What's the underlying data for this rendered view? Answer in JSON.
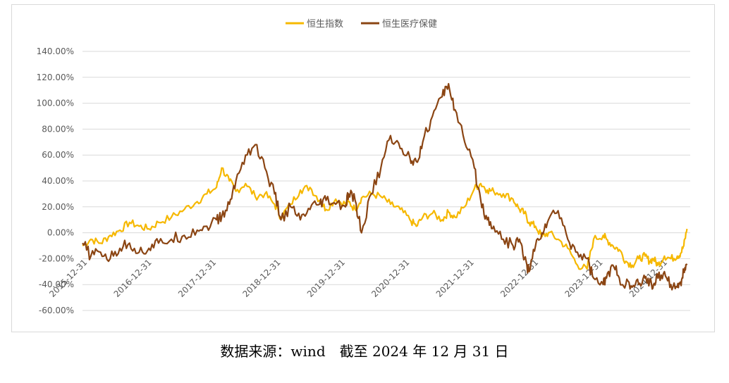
{
  "caption": "数据来源：wind　截至 2024 年 12 月 31 日",
  "chart_data": {
    "type": "line",
    "title": "",
    "xlabel": "",
    "ylabel": "",
    "legend_position": "top-center",
    "grid": "horizontal",
    "ylim": [
      -60,
      140
    ],
    "yticks": [
      -60,
      -40,
      -20,
      0,
      20,
      40,
      60,
      80,
      100,
      120,
      140
    ],
    "ytick_labels": [
      "-60.00%",
      "-40.00%",
      "-20.00%",
      "0.00%",
      "20.00%",
      "40.00%",
      "60.00%",
      "80.00%",
      "100.00%",
      "120.00%",
      "140.00%"
    ],
    "xlim": [
      2015.92,
      2025.35
    ],
    "xtick_positions": [
      2016.0,
      2017.0,
      2018.0,
      2019.0,
      2020.0,
      2021.0,
      2022.0,
      2023.0,
      2024.0,
      2025.0
    ],
    "xtick_labels": [
      "2015-12-31",
      "2016-12-31",
      "2017-12-31",
      "2018-12-31",
      "2019-12-31",
      "2020-12-31",
      "2021-12-31",
      "2022-12-31",
      "2023-12-31",
      "2024-12-31"
    ],
    "series": [
      {
        "name": "恒生指数",
        "color": "#f6b800",
        "x": [
          2015.92,
          2016.05,
          2016.2,
          2016.35,
          2016.5,
          2016.65,
          2016.8,
          2016.95,
          2017.1,
          2017.3,
          2017.5,
          2017.7,
          2017.85,
          2018.0,
          2018.08,
          2018.2,
          2018.3,
          2018.45,
          2018.6,
          2018.75,
          2018.9,
          2019.0,
          2019.15,
          2019.3,
          2019.45,
          2019.6,
          2019.7,
          2019.85,
          2020.0,
          2020.05,
          2020.15,
          2020.25,
          2020.4,
          2020.55,
          2020.7,
          2020.85,
          2021.0,
          2021.1,
          2021.2,
          2021.35,
          2021.5,
          2021.6,
          2021.7,
          2021.85,
          2022.0,
          2022.1,
          2022.2,
          2022.3,
          2022.45,
          2022.6,
          2022.7,
          2022.78,
          2022.85,
          2022.95,
          2023.05,
          2023.15,
          2023.3,
          2023.45,
          2023.6,
          2023.75,
          2023.85,
          2024.0,
          2024.05,
          2024.15,
          2024.25,
          2024.35,
          2024.45,
          2024.55,
          2024.65,
          2024.72,
          2024.78,
          2024.85,
          2024.95,
          2025.05,
          2025.15,
          2025.2,
          2025.25,
          2025.3
        ],
        "values": [
          -10,
          -5,
          -8,
          -2,
          2,
          8,
          5,
          3,
          8,
          12,
          18,
          24,
          30,
          35,
          50,
          40,
          32,
          38,
          28,
          30,
          22,
          12,
          22,
          33,
          35,
          25,
          18,
          26,
          22,
          24,
          18,
          27,
          30,
          28,
          22,
          18,
          10,
          5,
          12,
          15,
          10,
          16,
          12,
          20,
          34,
          38,
          33,
          32,
          30,
          26,
          18,
          15,
          8,
          5,
          -3,
          0,
          -5,
          -12,
          -25,
          -28,
          -5,
          -2,
          -5,
          -10,
          -13,
          -22,
          -25,
          -20,
          -18,
          -22,
          -20,
          -25,
          -18,
          -20,
          -18,
          -16,
          -10,
          3
        ]
      },
      {
        "name": "恒生医疗保健",
        "color": "#8b4513",
        "x": [
          2015.92,
          2016.05,
          2016.2,
          2016.35,
          2016.5,
          2016.65,
          2016.8,
          2016.95,
          2017.1,
          2017.3,
          2017.5,
          2017.7,
          2017.85,
          2018.0,
          2018.08,
          2018.2,
          2018.3,
          2018.45,
          2018.6,
          2018.75,
          2018.9,
          2019.0,
          2019.15,
          2019.3,
          2019.45,
          2019.6,
          2019.7,
          2019.85,
          2020.0,
          2020.05,
          2020.15,
          2020.25,
          2020.4,
          2020.55,
          2020.7,
          2020.85,
          2021.0,
          2021.1,
          2021.2,
          2021.35,
          2021.5,
          2021.6,
          2021.7,
          2021.85,
          2022.0,
          2022.1,
          2022.2,
          2022.3,
          2022.45,
          2022.6,
          2022.7,
          2022.78,
          2022.85,
          2022.95,
          2023.05,
          2023.15,
          2023.3,
          2023.45,
          2023.6,
          2023.75,
          2023.85,
          2024.0,
          2024.05,
          2024.15,
          2024.25,
          2024.35,
          2024.45,
          2024.55,
          2024.65,
          2024.72,
          2024.78,
          2024.85,
          2024.95,
          2025.05,
          2025.15,
          2025.2,
          2025.25,
          2025.3
        ],
        "values": [
          -8,
          -18,
          -15,
          -20,
          -12,
          -8,
          -15,
          -12,
          -8,
          -5,
          -2,
          2,
          5,
          10,
          12,
          22,
          40,
          60,
          68,
          50,
          30,
          10,
          20,
          10,
          18,
          22,
          25,
          22,
          20,
          30,
          25,
          0,
          30,
          50,
          75,
          65,
          58,
          55,
          70,
          90,
          105,
          115,
          95,
          70,
          50,
          25,
          10,
          5,
          -5,
          -10,
          -5,
          -20,
          -30,
          -10,
          0,
          10,
          17,
          -5,
          -15,
          -20,
          -35,
          -40,
          -35,
          -25,
          -35,
          -40,
          -42,
          -40,
          -35,
          -38,
          -40,
          -35,
          -30,
          -40,
          -42,
          -38,
          -30,
          -25
        ]
      }
    ]
  }
}
